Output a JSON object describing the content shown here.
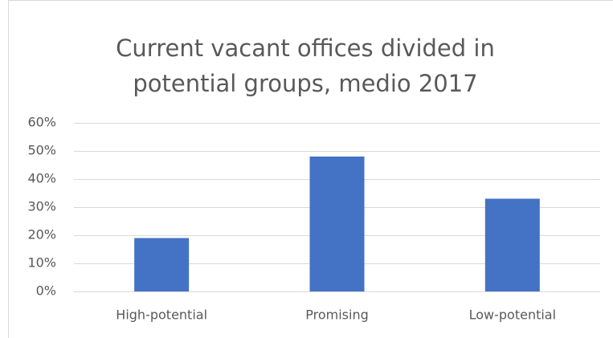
{
  "chart_data": {
    "type": "bar",
    "title": "Current vacant offices divided in potential groups, medio 2017",
    "categories": [
      "High-potential",
      "Promising",
      "Low-potential"
    ],
    "values": [
      19,
      48,
      33
    ],
    "color": "#4472c4",
    "ylim": [
      0,
      60
    ],
    "yticks": [
      {
        "value": 0,
        "label": "0%"
      },
      {
        "value": 10,
        "label": "10%"
      },
      {
        "value": 20,
        "label": "20%"
      },
      {
        "value": 30,
        "label": "30%"
      },
      {
        "value": 40,
        "label": "40%"
      },
      {
        "value": 50,
        "label": "50%"
      },
      {
        "value": 60,
        "label": "60%"
      }
    ],
    "grid": true
  }
}
